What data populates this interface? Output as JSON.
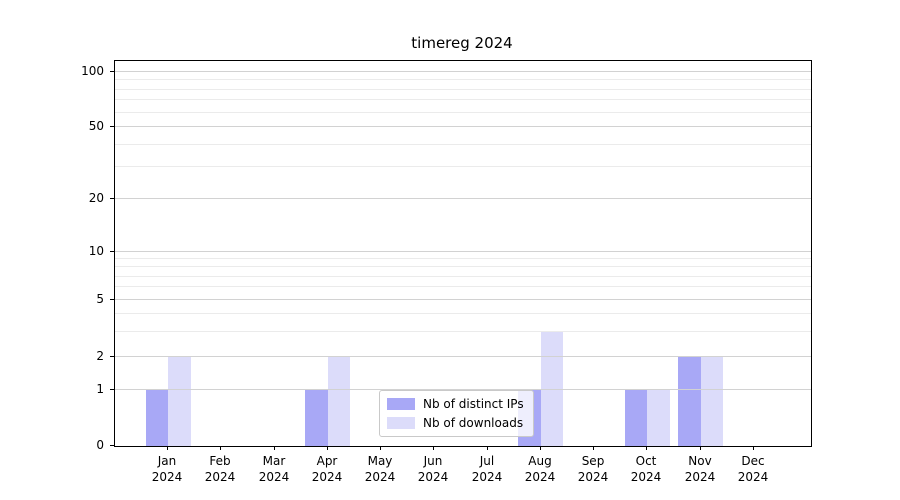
{
  "chart_data": {
    "type": "bar",
    "title": "timereg 2024",
    "categories": [
      "Jan",
      "Feb",
      "Mar",
      "Apr",
      "May",
      "Jun",
      "Jul",
      "Aug",
      "Sep",
      "Oct",
      "Nov",
      "Dec"
    ],
    "category_year": "2024",
    "series": [
      {
        "name": "Nb of distinct IPs",
        "color": "#a8a8f6",
        "values": [
          1,
          0,
          0,
          1,
          0,
          0,
          0,
          1,
          0,
          1,
          2,
          0
        ]
      },
      {
        "name": "Nb of downloads",
        "color": "#dcdcfa",
        "values": [
          2,
          0,
          0,
          2,
          0,
          0,
          0,
          3,
          0,
          1,
          2,
          0
        ]
      }
    ],
    "yaxis": {
      "scale": "symlog",
      "ylim": [
        0,
        110
      ],
      "major_ticks": [
        {
          "value": 0,
          "frac": 0
        },
        {
          "value": 1,
          "frac": 0.1455
        },
        {
          "value": 2,
          "frac": 0.2312
        },
        {
          "value": 5,
          "frac": 0.3792
        },
        {
          "value": 10,
          "frac": 0.5039
        },
        {
          "value": 20,
          "frac": 0.6416
        },
        {
          "value": 50,
          "frac": 0.8286
        },
        {
          "value": 100,
          "frac": 0.9714
        }
      ],
      "minor_ticks": [
        {
          "value": 3,
          "frac": 0.2966
        },
        {
          "value": 4,
          "frac": 0.3431
        },
        {
          "value": 6,
          "frac": 0.4119
        },
        {
          "value": 7,
          "frac": 0.4397
        },
        {
          "value": 8,
          "frac": 0.4637
        },
        {
          "value": 9,
          "frac": 0.4848
        },
        {
          "value": 30,
          "frac": 0.7243
        },
        {
          "value": 40,
          "frac": 0.783
        },
        {
          "value": 60,
          "frac": 0.8661
        },
        {
          "value": 70,
          "frac": 0.8979
        },
        {
          "value": 80,
          "frac": 0.9254
        },
        {
          "value": 90,
          "frac": 0.9496
        }
      ]
    },
    "legend": {
      "position": "lower center"
    },
    "grid": true
  },
  "colors": {
    "grid_major": "#d2d2d2",
    "grid_minor": "#ebebeb",
    "spine": "#000000",
    "background": "#ffffff",
    "text": "#000000"
  }
}
